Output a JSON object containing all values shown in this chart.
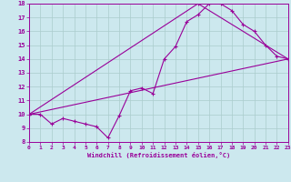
{
  "xlabel": "Windchill (Refroidissement éolien,°C)",
  "background_color": "#cce8ee",
  "grid_color": "#aacccc",
  "line_color": "#990099",
  "xlim": [
    0,
    23
  ],
  "ylim": [
    8,
    18
  ],
  "xticks": [
    0,
    1,
    2,
    3,
    4,
    5,
    6,
    7,
    8,
    9,
    10,
    11,
    12,
    13,
    14,
    15,
    16,
    17,
    18,
    19,
    20,
    21,
    22,
    23
  ],
  "yticks": [
    8,
    9,
    10,
    11,
    12,
    13,
    14,
    15,
    16,
    17,
    18
  ],
  "line1_x": [
    0,
    1,
    2,
    3,
    4,
    5,
    6,
    7,
    8,
    9,
    10,
    11,
    12,
    13,
    14,
    15,
    16,
    17,
    18,
    19,
    20,
    21,
    22,
    23
  ],
  "line1_y": [
    10.0,
    10.0,
    9.3,
    9.7,
    9.5,
    9.3,
    9.1,
    8.3,
    9.9,
    11.7,
    11.9,
    11.5,
    14.0,
    14.9,
    16.7,
    17.2,
    18.0,
    18.0,
    17.5,
    16.5,
    16.0,
    15.0,
    14.2,
    14.0
  ],
  "line2_x": [
    0,
    15,
    23
  ],
  "line2_y": [
    10.0,
    18.0,
    14.0
  ],
  "line3_x": [
    0,
    23
  ],
  "line3_y": [
    10.0,
    14.0
  ]
}
